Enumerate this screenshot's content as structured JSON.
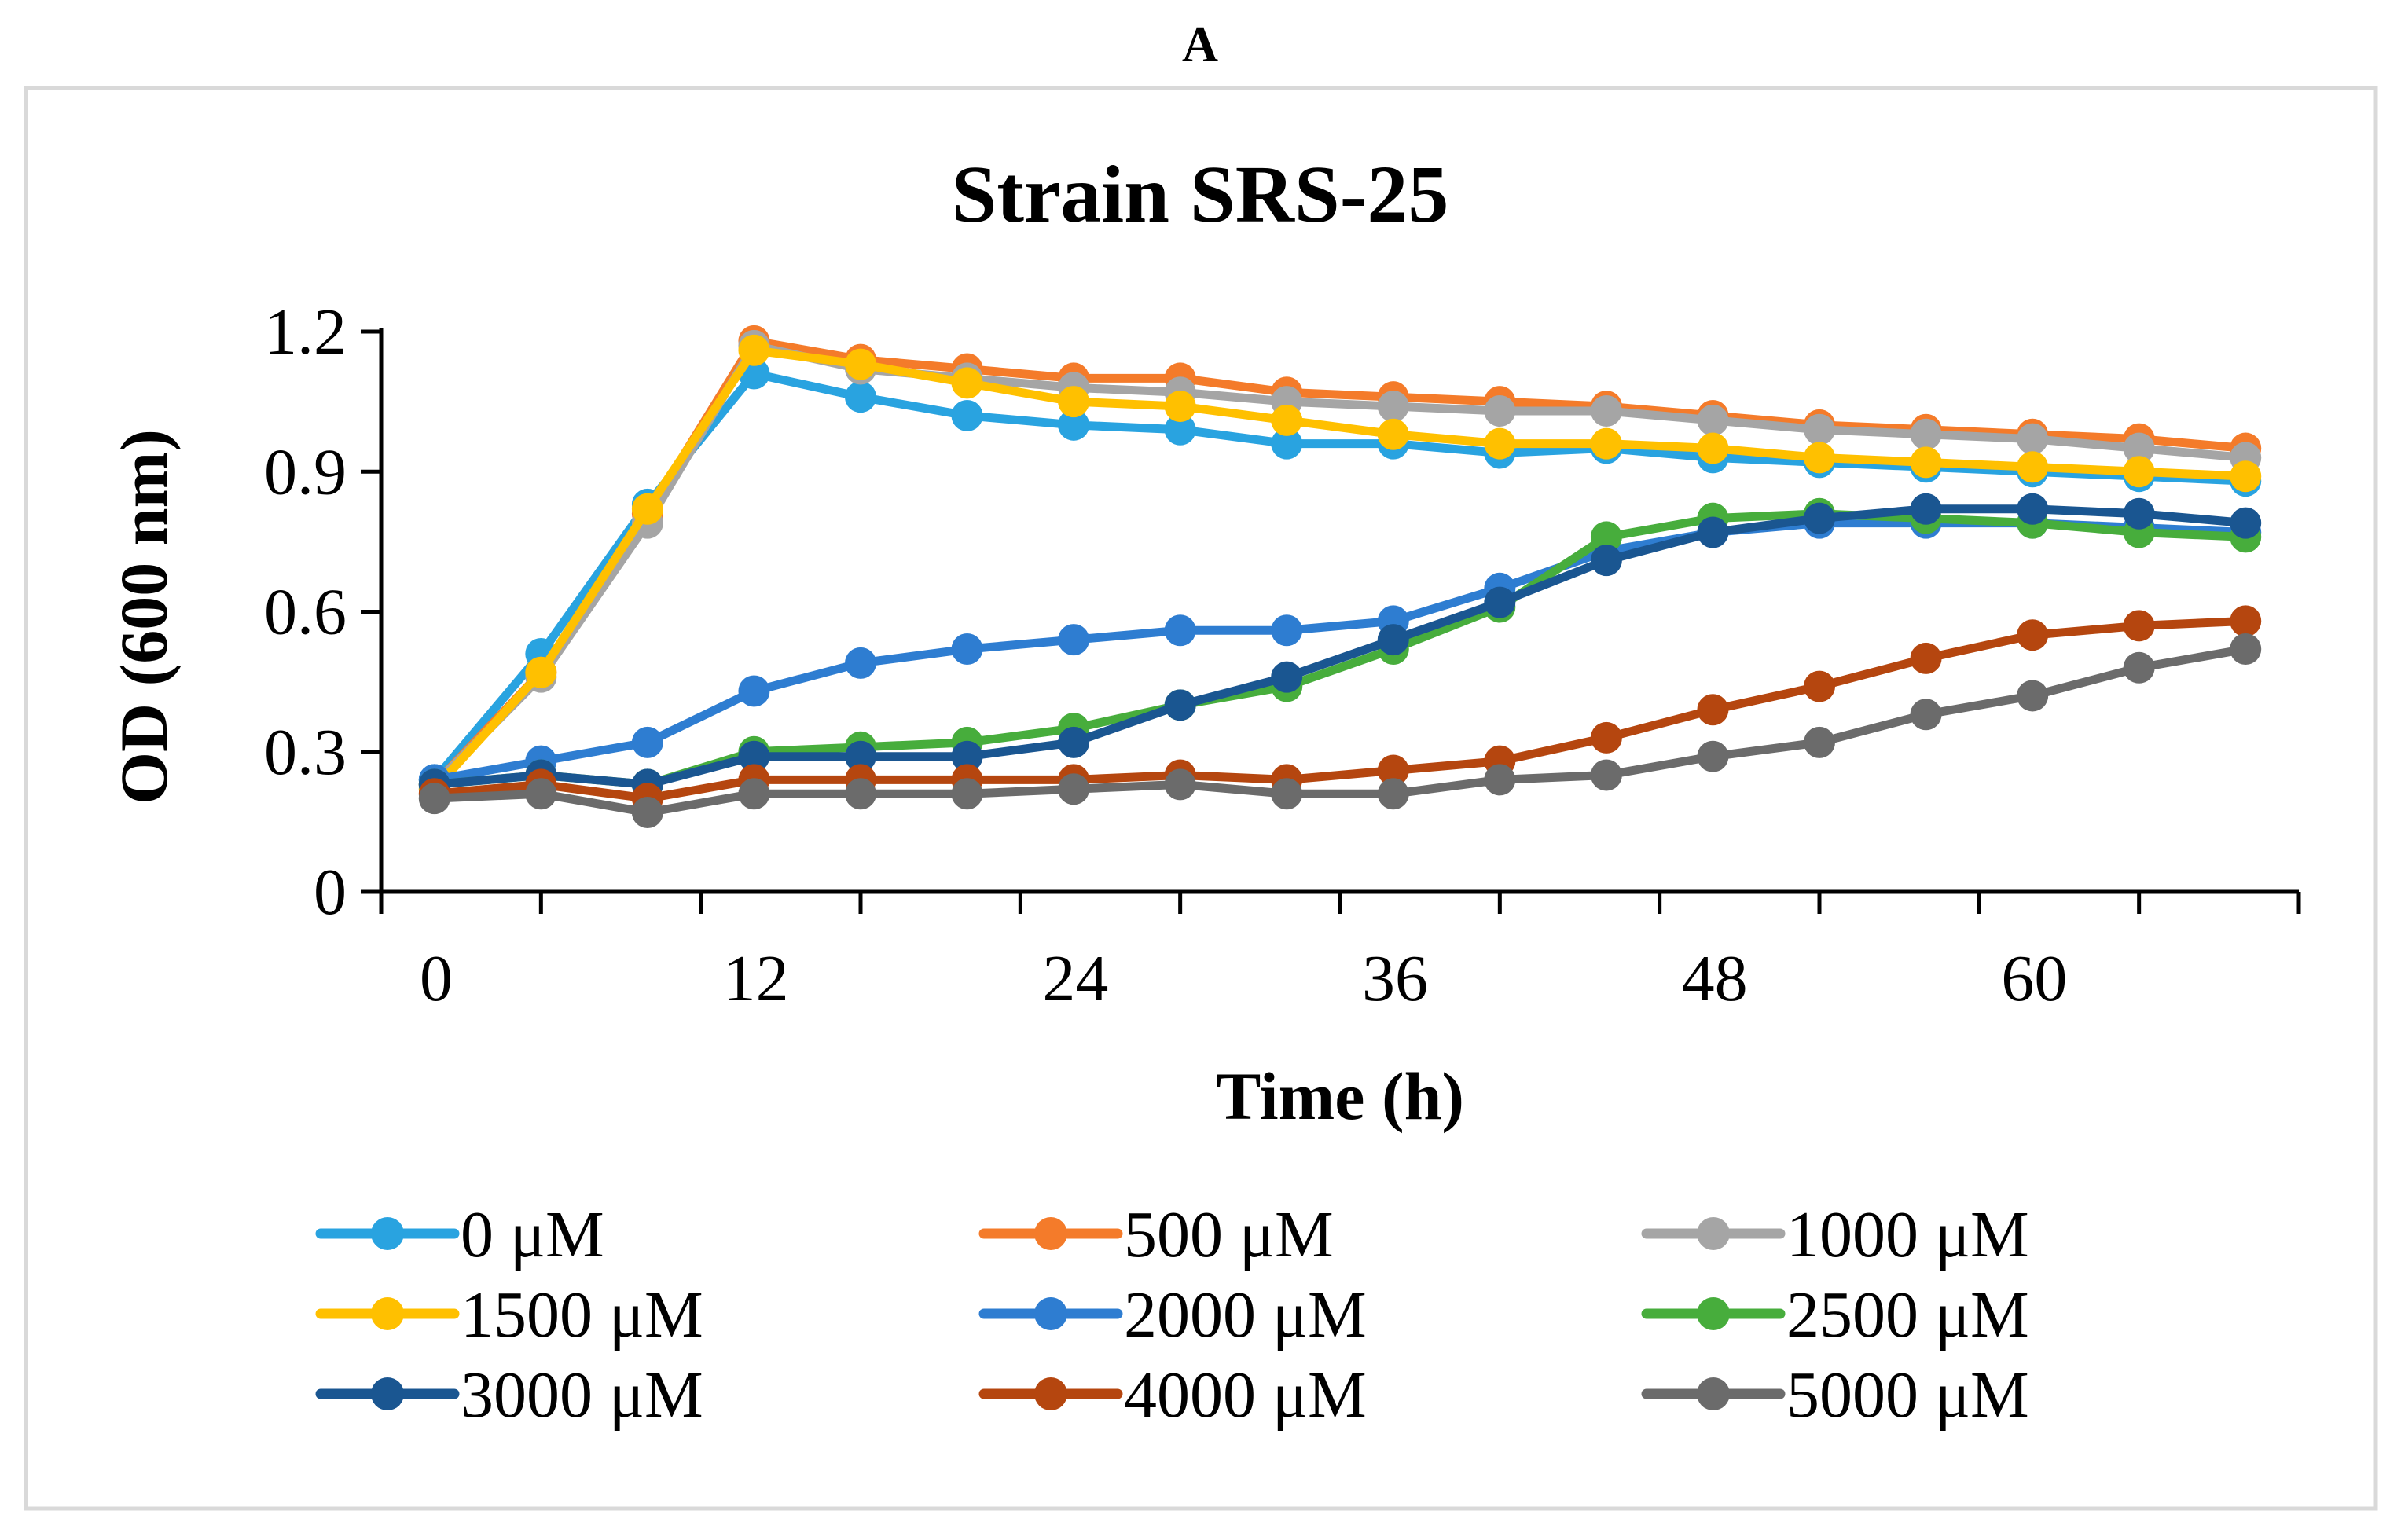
{
  "panel_label": "A",
  "chart_data": {
    "type": "line",
    "title": "Strain SRS-25",
    "xlabel": "Time (h)",
    "ylabel": "OD (600 nm)",
    "xlim": [
      0,
      72
    ],
    "ylim": [
      0,
      1.2
    ],
    "xticks": [
      0,
      12,
      24,
      36,
      48,
      60
    ],
    "xtick_labels": [
      "0",
      "12",
      "24",
      "36",
      "48",
      "60"
    ],
    "yticks": [
      0,
      0.3,
      0.6,
      0.9,
      1.2
    ],
    "ytick_labels": [
      "0",
      "0.3",
      "0.6",
      "0.9",
      "1.2"
    ],
    "grid": false,
    "legend_position": "bottom",
    "x": [
      2,
      6,
      10,
      14,
      18,
      22,
      26,
      30,
      34,
      38,
      42,
      46,
      50,
      54,
      58,
      62,
      66,
      70
    ],
    "series": [
      {
        "name": "0 μM",
        "color": "#29a3e0",
        "values": [
          0.24,
          0.51,
          0.83,
          1.11,
          1.06,
          1.02,
          1.0,
          0.99,
          0.96,
          0.96,
          0.94,
          0.95,
          0.93,
          0.92,
          0.91,
          0.9,
          0.89,
          0.88
        ]
      },
      {
        "name": "500 μM",
        "color": "#f47b2a",
        "values": [
          0.23,
          0.47,
          0.81,
          1.18,
          1.14,
          1.12,
          1.1,
          1.1,
          1.07,
          1.06,
          1.05,
          1.04,
          1.02,
          1.0,
          0.99,
          0.98,
          0.97,
          0.95
        ]
      },
      {
        "name": "1000 μM",
        "color": "#a5a5a5",
        "values": [
          0.23,
          0.46,
          0.79,
          1.17,
          1.12,
          1.1,
          1.08,
          1.07,
          1.05,
          1.04,
          1.03,
          1.03,
          1.01,
          0.99,
          0.98,
          0.97,
          0.95,
          0.93
        ]
      },
      {
        "name": "1500 μM",
        "color": "#ffc000",
        "values": [
          0.22,
          0.47,
          0.82,
          1.16,
          1.13,
          1.09,
          1.05,
          1.04,
          1.01,
          0.98,
          0.96,
          0.96,
          0.95,
          0.93,
          0.92,
          0.91,
          0.9,
          0.89
        ]
      },
      {
        "name": "2000 μM",
        "color": "#2e7dd1",
        "values": [
          0.24,
          0.28,
          0.32,
          0.43,
          0.49,
          0.52,
          0.54,
          0.56,
          0.56,
          0.58,
          0.65,
          0.73,
          0.77,
          0.79,
          0.79,
          0.79,
          0.78,
          0.77
        ]
      },
      {
        "name": "2500 μM",
        "color": "#47ad3c",
        "values": [
          0.23,
          0.25,
          0.23,
          0.3,
          0.31,
          0.32,
          0.35,
          0.4,
          0.44,
          0.52,
          0.61,
          0.76,
          0.8,
          0.81,
          0.8,
          0.79,
          0.77,
          0.76
        ]
      },
      {
        "name": "3000 μM",
        "color": "#1a5691",
        "values": [
          0.23,
          0.25,
          0.23,
          0.29,
          0.29,
          0.29,
          0.32,
          0.4,
          0.46,
          0.54,
          0.62,
          0.71,
          0.77,
          0.8,
          0.82,
          0.82,
          0.81,
          0.79
        ]
      },
      {
        "name": "4000 μM",
        "color": "#b5460f",
        "values": [
          0.21,
          0.23,
          0.2,
          0.24,
          0.24,
          0.24,
          0.24,
          0.25,
          0.24,
          0.26,
          0.28,
          0.33,
          0.39,
          0.44,
          0.5,
          0.55,
          0.57,
          0.58
        ]
      },
      {
        "name": "5000 μM",
        "color": "#6b6b6b",
        "values": [
          0.2,
          0.21,
          0.17,
          0.21,
          0.21,
          0.21,
          0.22,
          0.23,
          0.21,
          0.21,
          0.24,
          0.25,
          0.29,
          0.32,
          0.38,
          0.42,
          0.48,
          0.52
        ]
      }
    ]
  }
}
